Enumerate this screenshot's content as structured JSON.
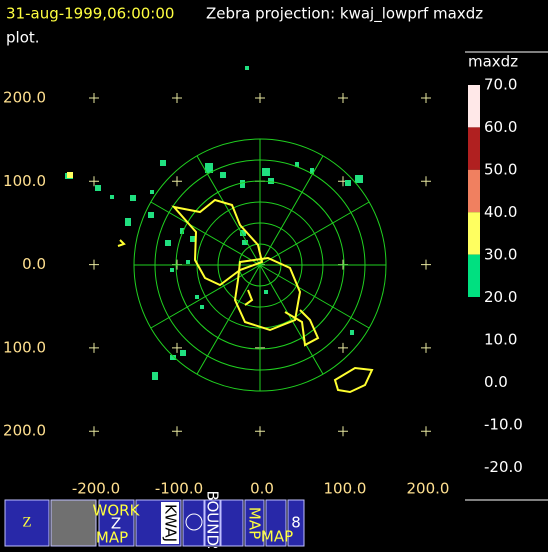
{
  "header": {
    "time": "31-aug-1999,06:00:00",
    "title": "Zebra projection: kwaj_lowprf maxdz",
    "title_cont": "plot."
  },
  "plot": {
    "x_labels": [
      "-200.0",
      "-100.0",
      "0.0",
      "100.0",
      "200.0"
    ],
    "y_labels": [
      "200.0",
      "100.0",
      "0.0",
      "100.0",
      "200.0"
    ]
  },
  "colorbar": {
    "title": "maxdz",
    "labels": [
      "70.0",
      "60.0",
      "50.0",
      "40.0",
      "30.0",
      "20.0",
      "10.0",
      "0.0",
      "-10.0",
      "-20.0"
    ]
  },
  "toolbar": {
    "work": "WORK",
    "z": "Z",
    "map": "MAP",
    "kwaj": "KWAJ",
    "bounds": "BOUNDS",
    "map1": "MAP",
    "map2": "MAP"
  }
}
